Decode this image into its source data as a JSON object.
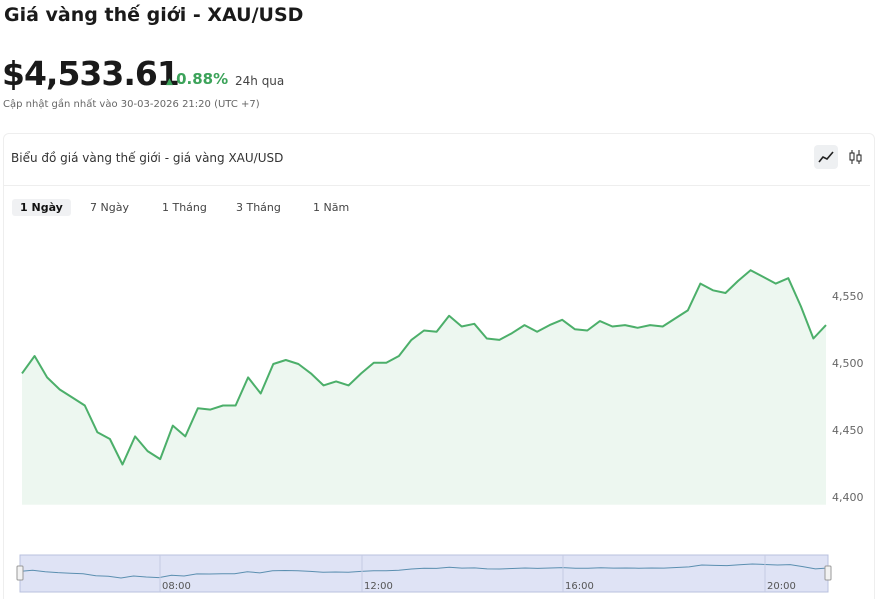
{
  "header": {
    "title": "Giá vàng thế giới - XAU/USD",
    "price": "$4,533.61",
    "change": "0.88%",
    "change_period": "24h qua",
    "updated": "Cập nhật gần nhất vào 30-03-2026 21:20 (UTC +7)"
  },
  "panel": {
    "title": "Biểu đồ giá vàng thế giới - giá vàng XAU/USD",
    "tabs": [
      "1 Ngày",
      "7 Ngày",
      "1 Tháng",
      "3 Tháng",
      "1 Năm"
    ],
    "active_tab": 0
  },
  "chart_data": {
    "type": "area",
    "color": "#4caf6a",
    "values": [
      4493,
      4506,
      4490,
      4481,
      4475,
      4469,
      4449,
      4444,
      4425,
      4446,
      4435,
      4429,
      4454,
      4446,
      4467,
      4466,
      4469,
      4469,
      4490,
      4478,
      4500,
      4503,
      4500,
      4493,
      4484,
      4487,
      4484,
      4493,
      4501,
      4501,
      4506,
      4518,
      4525,
      4524,
      4536,
      4528,
      4530,
      4519,
      4518,
      4523,
      4529,
      4524,
      4529,
      4533,
      4526,
      4525,
      4532,
      4528,
      4529,
      4527,
      4529,
      4528,
      4534,
      4540,
      4560,
      4555,
      4553,
      4562,
      4570,
      4565,
      4560,
      4564,
      4543,
      4519,
      4529
    ],
    "ylim": [
      4395,
      4600
    ],
    "yticks": [
      {
        "value": 4400,
        "label": "4,400"
      },
      {
        "value": 4450,
        "label": "4,450"
      },
      {
        "value": 4500,
        "label": "4,500"
      },
      {
        "value": 4550,
        "label": "4,550"
      }
    ],
    "navigator_labels": [
      "08:00",
      "12:00",
      "16:00",
      "20:00"
    ]
  }
}
